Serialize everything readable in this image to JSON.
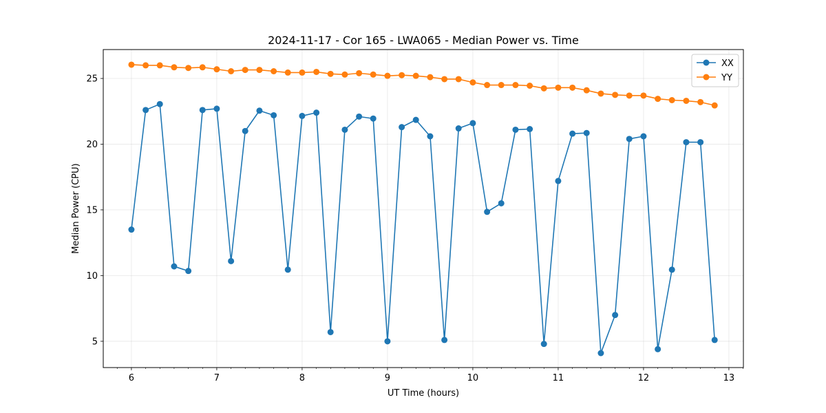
{
  "chart_data": {
    "type": "line",
    "title": "2024-11-17 - Cor 165 - LWA065 - Median Power vs. Time",
    "xlabel": "UT Time (hours)",
    "ylabel": "Median Power (CPU)",
    "xlim": [
      5.67,
      13.17
    ],
    "ylim": [
      3.0,
      27.2
    ],
    "xticks": [
      6,
      7,
      8,
      9,
      10,
      11,
      12,
      13
    ],
    "yticks": [
      5,
      10,
      15,
      20,
      25
    ],
    "grid": true,
    "legend_position": "top-right",
    "x": [
      6.0,
      6.167,
      6.333,
      6.5,
      6.667,
      6.833,
      7.0,
      7.167,
      7.333,
      7.5,
      7.667,
      7.833,
      8.0,
      8.167,
      8.333,
      8.5,
      8.667,
      8.833,
      9.0,
      9.167,
      9.333,
      9.5,
      9.667,
      9.833,
      10.0,
      10.167,
      10.333,
      10.5,
      10.667,
      10.833,
      11.0,
      11.167,
      11.333,
      11.5,
      11.667,
      11.833,
      12.0,
      12.167,
      12.333,
      12.5,
      12.667,
      12.833
    ],
    "series": [
      {
        "name": "XX",
        "color": "#1f77b4",
        "values": [
          13.5,
          22.6,
          23.05,
          10.7,
          10.35,
          22.6,
          22.7,
          11.1,
          21.0,
          22.55,
          22.2,
          10.45,
          22.15,
          22.4,
          5.7,
          21.1,
          22.1,
          21.95,
          5.0,
          21.3,
          21.85,
          20.6,
          5.1,
          21.2,
          21.6,
          14.85,
          15.5,
          21.1,
          21.15,
          4.8,
          17.2,
          20.8,
          20.85,
          4.1,
          7.0,
          20.4,
          20.6,
          4.4,
          10.45,
          20.15,
          20.15,
          5.1
        ]
      },
      {
        "name": "YY",
        "color": "#ff7f0e",
        "values": [
          26.05,
          26.0,
          26.0,
          25.85,
          25.8,
          25.85,
          25.7,
          25.55,
          25.65,
          25.65,
          25.55,
          25.45,
          25.45,
          25.5,
          25.35,
          25.3,
          25.4,
          25.3,
          25.2,
          25.25,
          25.2,
          25.1,
          24.95,
          24.95,
          24.7,
          24.5,
          24.5,
          24.5,
          24.45,
          24.25,
          24.3,
          24.3,
          24.1,
          23.85,
          23.75,
          23.7,
          23.7,
          23.45,
          23.35,
          23.3,
          23.2,
          22.95
        ]
      }
    ]
  }
}
